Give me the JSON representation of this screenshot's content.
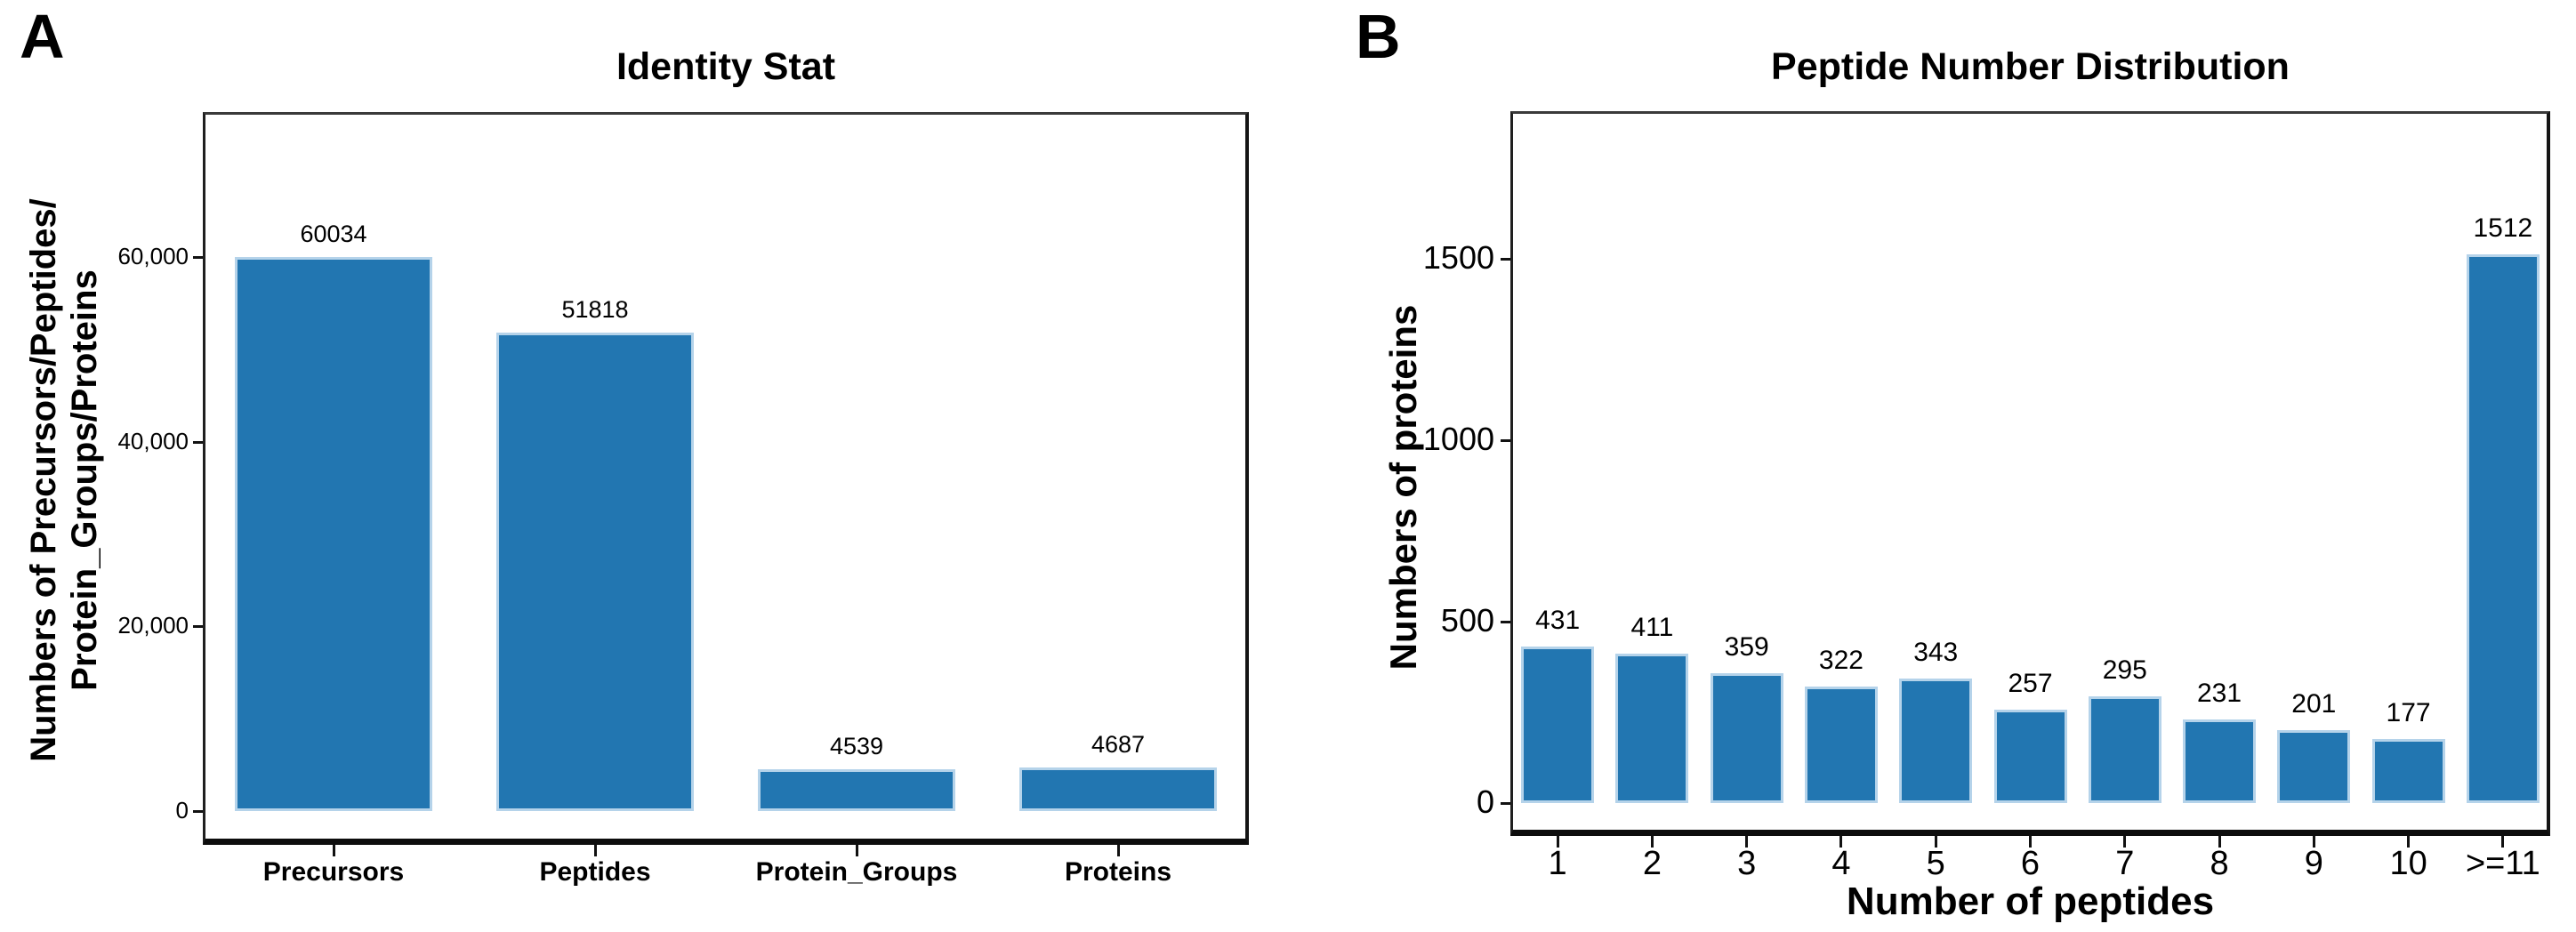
{
  "chart_data": [
    {
      "panel": "A",
      "type": "bar",
      "title": "Identity Stat",
      "categories": [
        "Precursors",
        "Peptides",
        "Protein_Groups",
        "Proteins"
      ],
      "values": [
        60034,
        51818,
        4539,
        4687
      ],
      "bar_labels": [
        "60034",
        "51818",
        "4539",
        "4687"
      ],
      "xlabel": "",
      "ylabel": "Numbers of Precursors/Peptides/\nProtein_Groups/Proteins",
      "yticks": {
        "values": [
          0,
          20000,
          40000,
          60000
        ],
        "labels": [
          "0",
          "20,000",
          "40,000",
          "60,000"
        ]
      },
      "ylim": [
        0,
        75000
      ],
      "grid": false,
      "legend": null
    },
    {
      "panel": "B",
      "type": "bar",
      "title": "Peptide Number Distribution",
      "categories": [
        "1",
        "2",
        "3",
        "4",
        "5",
        "6",
        "7",
        "8",
        "9",
        "10",
        ">=11"
      ],
      "values": [
        431,
        411,
        359,
        322,
        343,
        257,
        295,
        231,
        201,
        177,
        1512
      ],
      "bar_labels": [
        "431",
        "411",
        "359",
        "322",
        "343",
        "257",
        "295",
        "231",
        "201",
        "177",
        "1512"
      ],
      "xlabel": "Number of peptides",
      "ylabel": "Numbers of proteins",
      "yticks": {
        "values": [
          0,
          500,
          1000,
          1500
        ],
        "labels": [
          "0",
          "500",
          "1000",
          "1500"
        ]
      },
      "ylim": [
        0,
        1900
      ],
      "grid": false,
      "legend": null
    }
  ],
  "colors": {
    "bar_fill": "#2276b1",
    "bar_edge": "#b5d3ea",
    "axis": "#111111",
    "text": "#000000",
    "background": "#ffffff"
  }
}
